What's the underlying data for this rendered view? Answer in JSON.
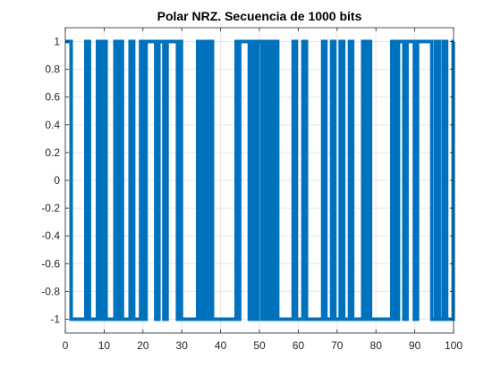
{
  "chart_data": {
    "type": "line",
    "title": "Polar NRZ. Secuencia de 1000 bits",
    "xlabel": "",
    "ylabel": "",
    "xlim": [
      0,
      100
    ],
    "ylim": [
      -1.1,
      1.1
    ],
    "x_ticks": [
      "0",
      "10",
      "20",
      "30",
      "40",
      "50",
      "60",
      "70",
      "80",
      "90",
      "100"
    ],
    "y_ticks": [
      "1",
      "0.8",
      "0.6",
      "0.4",
      "0.2",
      "0",
      "-0.2",
      "-0.4",
      "-0.6",
      "-0.8",
      "-1"
    ],
    "x_tick_values": [
      0,
      10,
      20,
      30,
      40,
      50,
      60,
      70,
      80,
      90,
      100
    ],
    "y_tick_values": [
      1,
      0.8,
      0.6,
      0.4,
      0.2,
      0,
      -0.2,
      -0.4,
      -0.6,
      -0.8,
      -1
    ],
    "grid": true,
    "line_color": "#0072BD",
    "series": [
      {
        "step_x": [
          0,
          1.5,
          5.3,
          6.2,
          8.3,
          9.2,
          9.9,
          10.5,
          12.8,
          13.6,
          13.9,
          14.7,
          16.7,
          17.6,
          19.4,
          20.2,
          20.8,
          23.3,
          24.1,
          25.4,
          26.2,
          28.9,
          29.6,
          29.9,
          34.1,
          34.8,
          35.4,
          36.2,
          37.0,
          37.9,
          44.0,
          44.8,
          44.9,
          47.4,
          48.2,
          49.0,
          49.6,
          50.6,
          50.9,
          51.7,
          52.2,
          53.0,
          53.9,
          54.7,
          58.7,
          59.5,
          61.2,
          62.1,
          66.3,
          67.1,
          68.6,
          69.4,
          70.8,
          71.7,
          73.2,
          74.0,
          76.6,
          77.4,
          77.8,
          78.6,
          84.1,
          84.9,
          85.8,
          87.2,
          88.0,
          89.9,
          90.7,
          94.4,
          95.4,
          96.3,
          97.3,
          98.2,
          99.9,
          100
        ]
      }
    ],
    "start_value": 1
  }
}
